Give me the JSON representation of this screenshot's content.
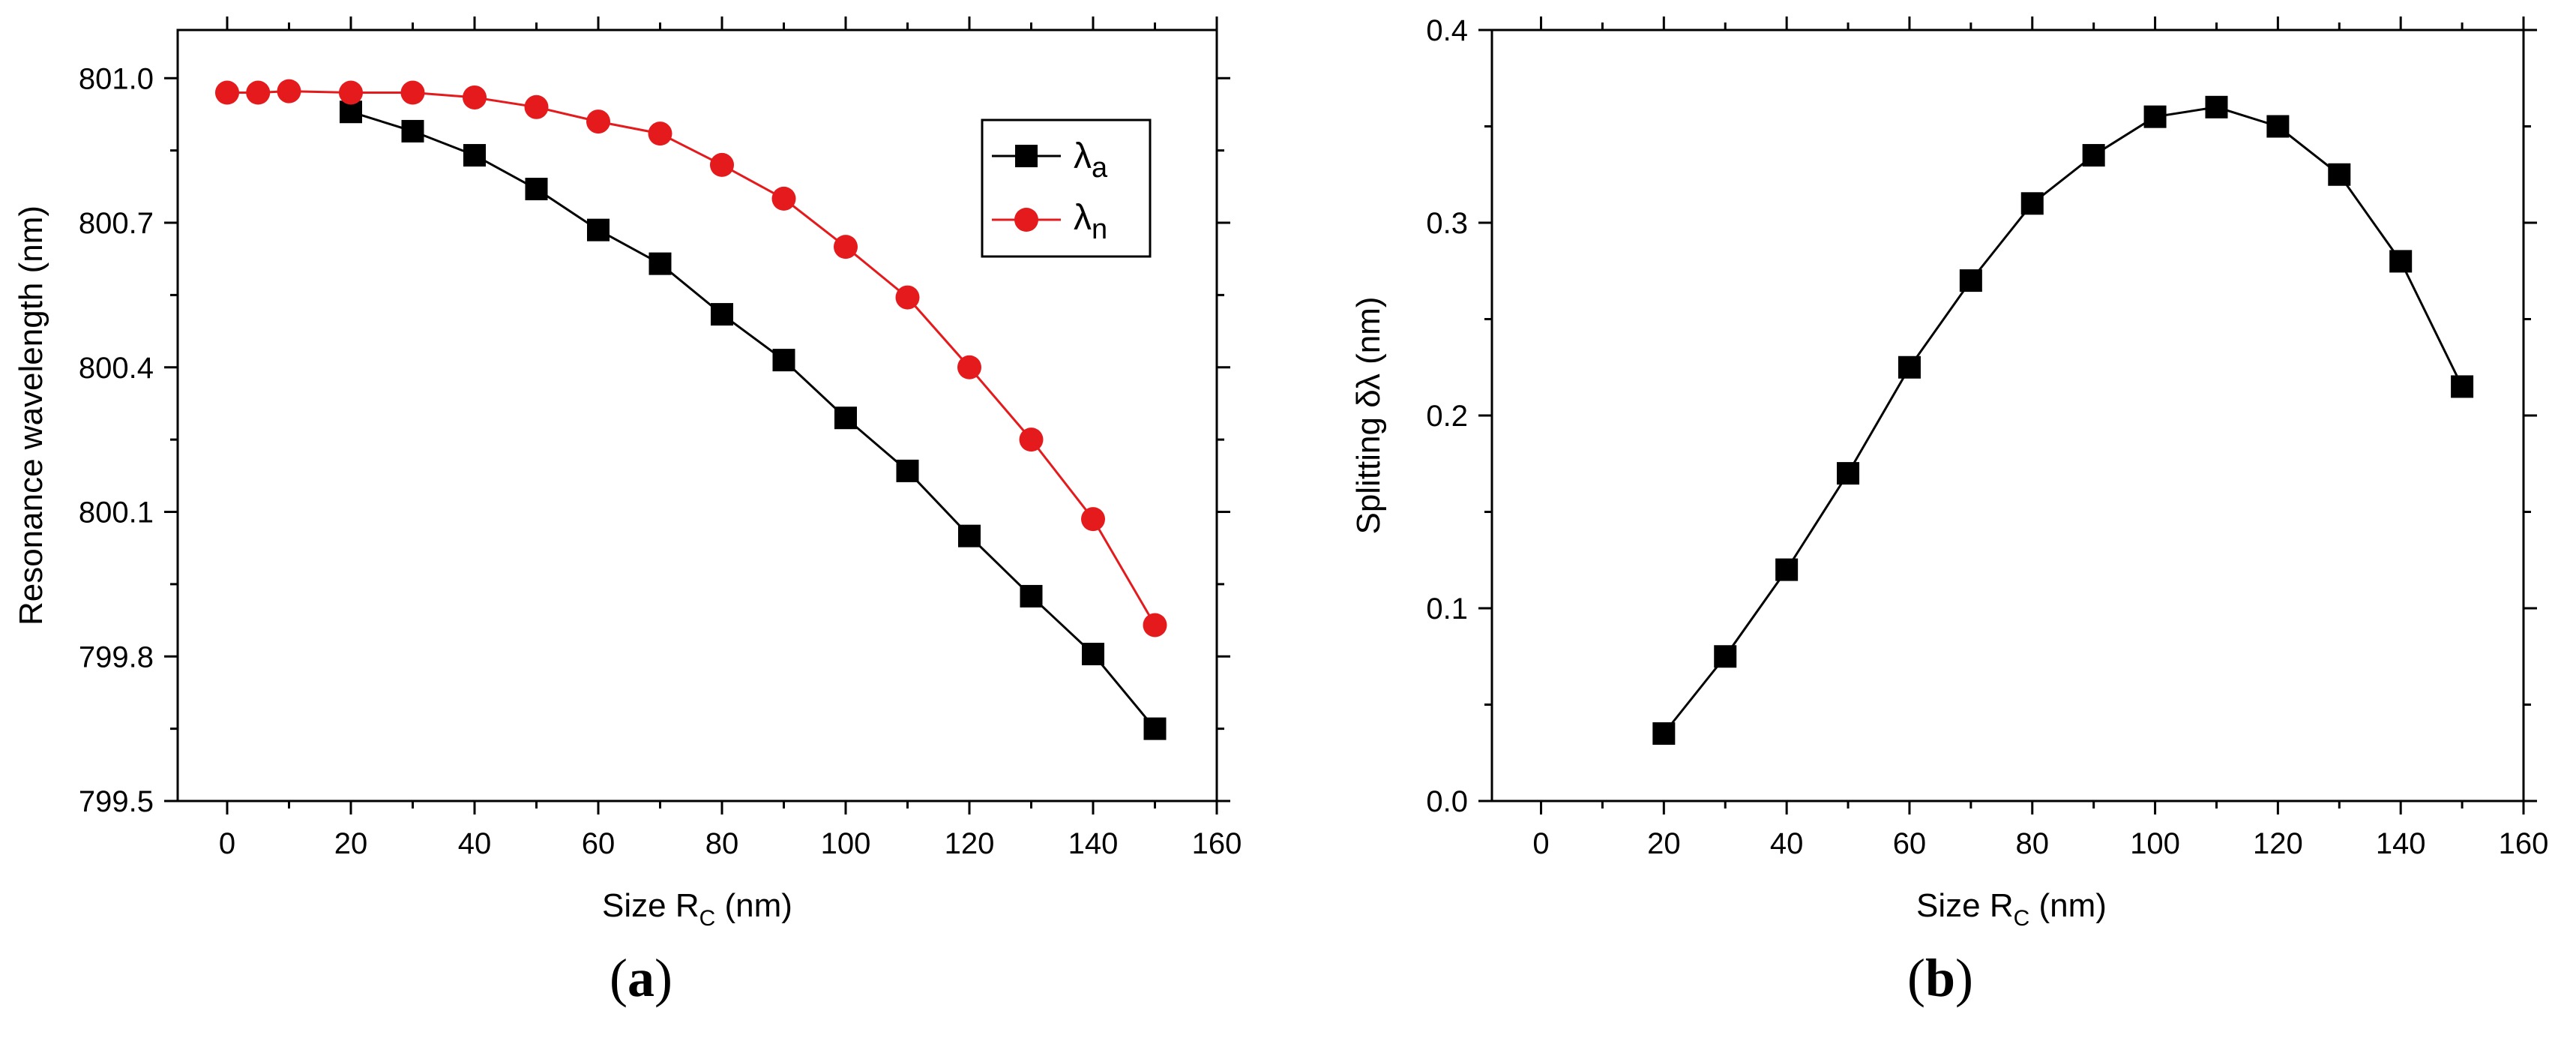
{
  "chart_data": [
    {
      "type": "line",
      "panel_label": "a",
      "xlabel_main": "Size R",
      "xlabel_sub": "C",
      "xlabel_unit": " (nm)",
      "ylabel": "Resonance wavelength (nm)",
      "xlim": [
        -8,
        160
      ],
      "ylim": [
        799.5,
        801.1
      ],
      "xticks": [
        0,
        20,
        40,
        60,
        80,
        100,
        120,
        140,
        160
      ],
      "yticks": [
        799.5,
        799.8,
        800.1,
        800.4,
        800.7,
        801.0
      ],
      "ytick_labels": [
        "799.5",
        "799.8",
        "800.1",
        "800.4",
        "800.7",
        "801.0"
      ],
      "legend_position": "top-right",
      "series": [
        {
          "name": "λa",
          "legend_main": "λ",
          "legend_sub": "a",
          "color": "#000000",
          "marker": "square",
          "x": [
            20,
            30,
            40,
            50,
            60,
            70,
            80,
            90,
            100,
            110,
            120,
            130,
            140,
            150
          ],
          "y": [
            800.93,
            800.89,
            800.84,
            800.77,
            800.685,
            800.615,
            800.51,
            800.415,
            800.295,
            800.185,
            800.05,
            799.925,
            799.805,
            799.65
          ]
        },
        {
          "name": "λn",
          "legend_main": "λ",
          "legend_sub": "n",
          "color": "#e41a1c",
          "marker": "circle",
          "x": [
            0,
            5,
            10,
            20,
            30,
            40,
            50,
            60,
            70,
            80,
            90,
            100,
            110,
            120,
            130,
            140,
            150
          ],
          "y": [
            800.97,
            800.97,
            800.973,
            800.97,
            800.97,
            800.96,
            800.94,
            800.91,
            800.885,
            800.82,
            800.75,
            800.65,
            800.545,
            800.4,
            800.25,
            800.085,
            799.865
          ]
        }
      ]
    },
    {
      "type": "line",
      "panel_label": "b",
      "xlabel_main": "Size R",
      "xlabel_sub": "C",
      "xlabel_unit": " (nm)",
      "ylabel": "Splitting δλ (nm)",
      "xlim": [
        -8,
        160
      ],
      "ylim": [
        0.0,
        0.4
      ],
      "xticks": [
        0,
        20,
        40,
        60,
        80,
        100,
        120,
        140,
        160
      ],
      "yticks": [
        0.0,
        0.1,
        0.2,
        0.3,
        0.4
      ],
      "ytick_labels": [
        "0.0",
        "0.1",
        "0.2",
        "0.3",
        "0.4"
      ],
      "series": [
        {
          "name": "δλ",
          "color": "#000000",
          "marker": "square",
          "x": [
            20,
            30,
            40,
            50,
            60,
            70,
            80,
            90,
            100,
            110,
            120,
            130,
            140,
            150
          ],
          "y": [
            0.035,
            0.075,
            0.12,
            0.17,
            0.225,
            0.27,
            0.31,
            0.335,
            0.355,
            0.36,
            0.35,
            0.325,
            0.28,
            0.215
          ]
        }
      ]
    }
  ]
}
